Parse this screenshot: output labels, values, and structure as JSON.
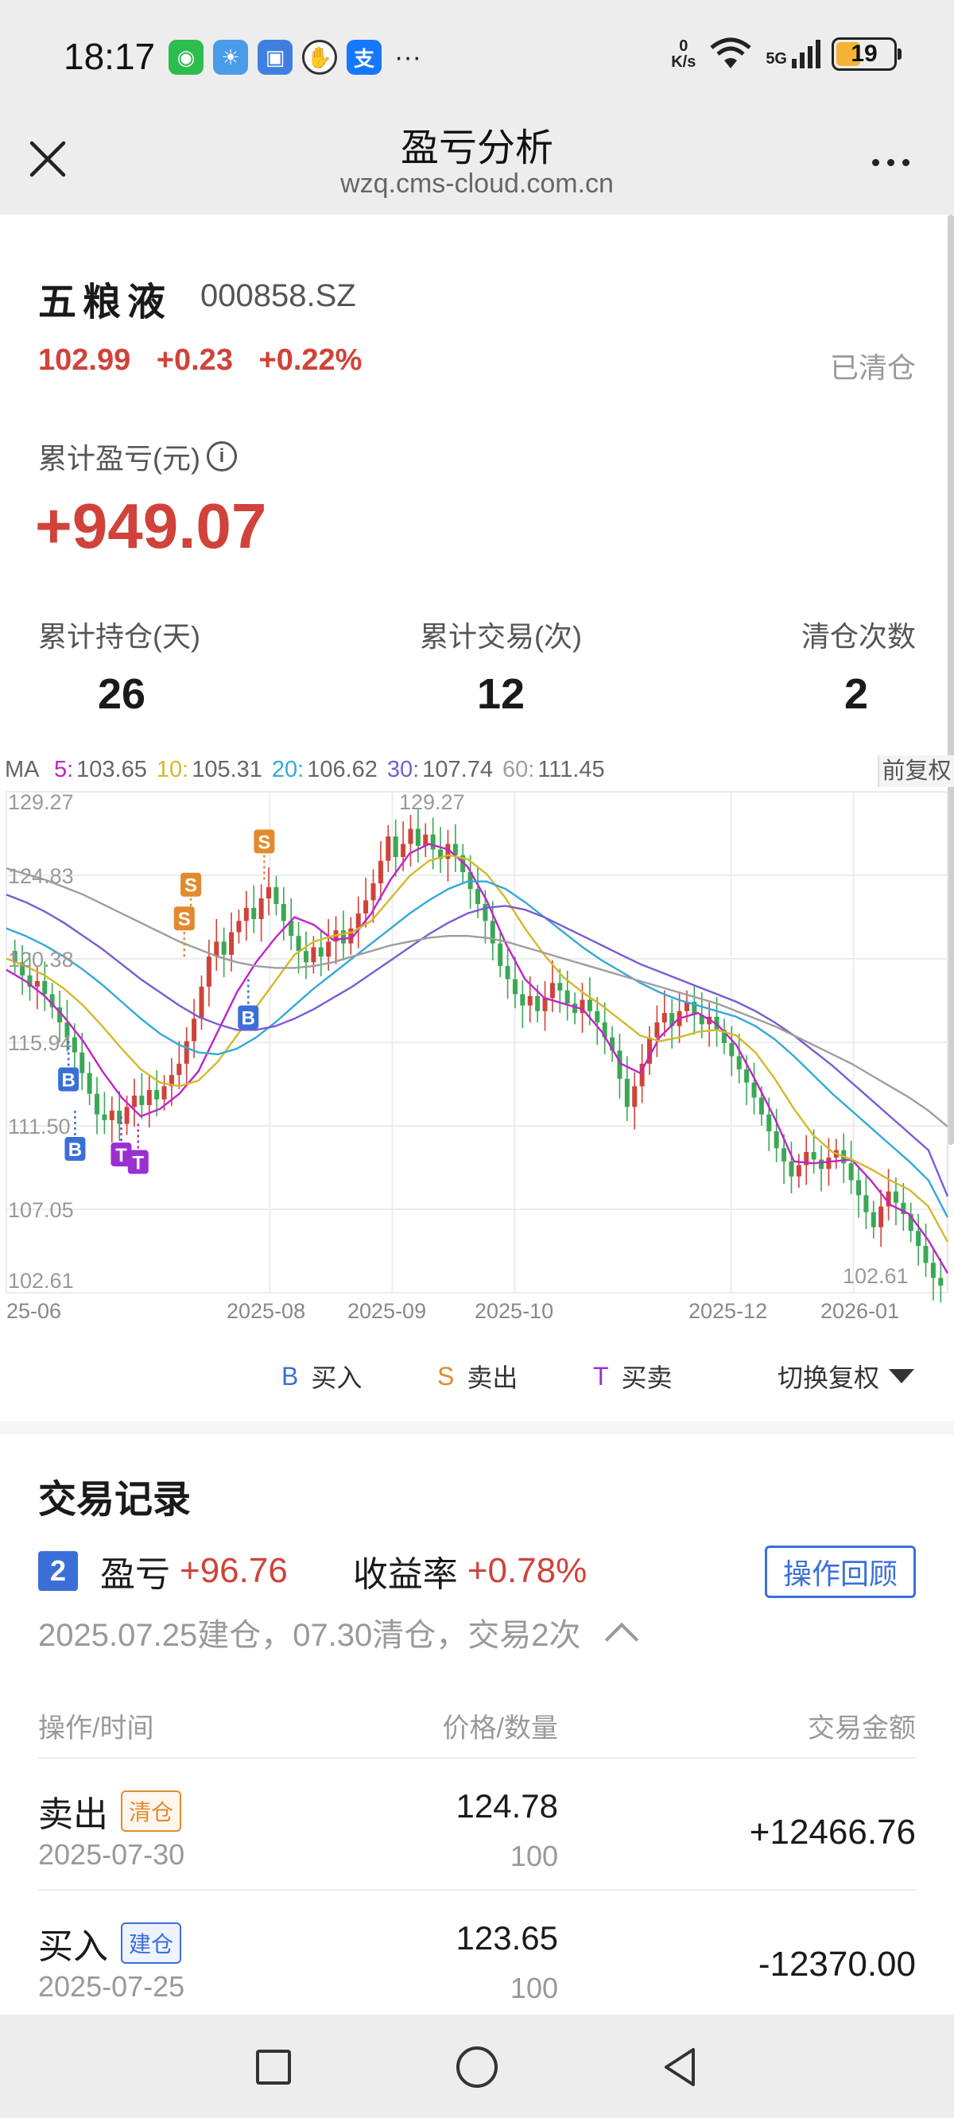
{
  "status": {
    "time": "18:17",
    "net_speed_top": "0",
    "net_speed_bottom": "K/s",
    "signal": "5G",
    "battery": "19"
  },
  "header": {
    "title": "盈亏分析",
    "subtitle": "wzq.cms-cloud.com.cn"
  },
  "stock": {
    "name": "五粮液",
    "code": "000858.SZ",
    "price": "102.99",
    "change": "+0.23",
    "change_pct": "+0.22%",
    "status": "已清仓"
  },
  "summary": {
    "cum_label": "累计盈亏(元)",
    "cum_value": "+949.07",
    "stats": [
      {
        "label": "累计持仓(天)",
        "value": "26"
      },
      {
        "label": "累计交易(次)",
        "value": "12"
      },
      {
        "label": "清仓次数",
        "value": "2"
      }
    ]
  },
  "ma": {
    "prefix": "MA",
    "items": [
      {
        "key": "5:",
        "value": "103.65",
        "color": "#c224c9"
      },
      {
        "key": "10:",
        "value": "105.31",
        "color": "#d4b92a"
      },
      {
        "key": "20:",
        "value": "106.62",
        "color": "#35a9d9"
      },
      {
        "key": "30:",
        "value": "107.74",
        "color": "#7b5bd4"
      },
      {
        "key": "60:",
        "value": "111.45",
        "color": "#9e9e9e"
      }
    ],
    "adjust": "前复权"
  },
  "chart_data": {
    "type": "candlestick",
    "y_ticks": [
      "129.27",
      "124.83",
      "120.38",
      "115.94",
      "111.50",
      "107.05",
      "102.61"
    ],
    "y_range": [
      102.61,
      129.27
    ],
    "x_ticks": [
      "25-06",
      "2025-08",
      "2025-09",
      "2025-10",
      "2025-12",
      "2026-01"
    ],
    "max_label": "129.27",
    "min_label": "102.61",
    "closes": [
      120.2,
      119.5,
      118.9,
      119.2,
      118.5,
      117.8,
      117.0,
      116.2,
      115.4,
      114.3,
      113.2,
      112.1,
      111.8,
      112.3,
      111.6,
      112.5,
      113.1,
      112.6,
      113.4,
      112.9,
      113.6,
      114.2,
      114.8,
      116.0,
      117.2,
      118.9,
      120.5,
      121.3,
      120.6,
      121.8,
      122.4,
      123.1,
      122.5,
      123.6,
      124.2,
      123.3,
      122.4,
      121.6,
      120.8,
      120.2,
      121.0,
      120.5,
      121.3,
      121.9,
      121.2,
      122.0,
      122.8,
      123.5,
      124.4,
      125.6,
      126.9,
      125.8,
      126.5,
      127.3,
      126.4,
      127.0,
      126.2,
      125.7,
      126.5,
      125.9,
      125.0,
      124.1,
      123.3,
      122.4,
      121.2,
      120.0,
      119.3,
      118.5,
      117.9,
      118.4,
      117.6,
      118.3,
      119.1,
      118.7,
      118.0,
      117.5,
      118.2,
      117.6,
      117.0,
      116.2,
      115.5,
      114.0,
      112.5,
      113.6,
      114.8,
      116.2,
      117.0,
      117.5,
      116.8,
      117.6,
      118.1,
      117.4,
      116.9,
      117.3,
      116.6,
      115.9,
      115.2,
      114.5,
      113.8,
      113.0,
      112.1,
      111.2,
      110.3,
      109.6,
      108.8,
      109.4,
      110.1,
      109.7,
      109.2,
      109.8,
      110.2,
      109.5,
      108.6,
      107.8,
      106.9,
      106.1,
      107.2,
      108.0,
      107.4,
      106.8,
      105.9,
      105.1,
      104.2,
      103.4,
      102.99
    ],
    "ma_series": [
      {
        "name": "MA5",
        "values": [
          119.8,
          119.2,
          118.4,
          117.3,
          116.0,
          114.4,
          113.0,
          112.0,
          112.4,
          113.2,
          114.4,
          116.5,
          118.6,
          120.2,
          121.5,
          122.6,
          122.2,
          121.4,
          121.5,
          122.8,
          124.6,
          126.0,
          126.5,
          126.2,
          125.3,
          123.5,
          121.2,
          119.3,
          118.3,
          118.0,
          117.7,
          116.5,
          114.8,
          114.3,
          116.2,
          117.2,
          117.5,
          116.9,
          115.8,
          113.9,
          111.9,
          109.6,
          109.5,
          109.6,
          109.7,
          108.6,
          107.3,
          106.8,
          105.4,
          103.65
        ]
      },
      {
        "name": "MA10",
        "values": [
          120.4,
          120.0,
          119.5,
          118.8,
          117.9,
          116.8,
          115.6,
          114.5,
          113.8,
          113.6,
          113.9,
          114.9,
          116.3,
          117.8,
          119.2,
          120.6,
          121.3,
          121.6,
          121.8,
          122.4,
          123.6,
          124.8,
          125.6,
          125.9,
          125.7,
          124.9,
          123.6,
          122.0,
          120.6,
          119.4,
          118.6,
          117.9,
          117.1,
          116.3,
          116.0,
          116.2,
          116.5,
          116.6,
          116.3,
          115.4,
          114.0,
          112.4,
          111.0,
          110.1,
          109.7,
          109.2,
          108.6,
          108.1,
          107.2,
          105.31
        ]
      },
      {
        "name": "MA20",
        "values": [
          122.0,
          121.6,
          121.1,
          120.5,
          119.8,
          119.0,
          118.1,
          117.2,
          116.4,
          115.8,
          115.4,
          115.3,
          115.6,
          116.2,
          117.0,
          117.9,
          118.8,
          119.6,
          120.4,
          121.2,
          122.0,
          122.8,
          123.5,
          124.1,
          124.5,
          124.5,
          124.1,
          123.4,
          122.6,
          121.8,
          121.0,
          120.3,
          119.7,
          119.1,
          118.6,
          118.2,
          117.9,
          117.6,
          117.3,
          116.8,
          116.1,
          115.2,
          114.2,
          113.2,
          112.3,
          111.4,
          110.5,
          109.6,
          108.6,
          106.62
        ]
      },
      {
        "name": "MA30",
        "values": [
          123.8,
          123.4,
          122.9,
          122.3,
          121.6,
          120.9,
          120.1,
          119.3,
          118.6,
          117.9,
          117.3,
          116.9,
          116.6,
          116.6,
          116.8,
          117.2,
          117.7,
          118.3,
          118.9,
          119.6,
          120.3,
          121.0,
          121.7,
          122.3,
          122.8,
          123.1,
          123.2,
          123.0,
          122.6,
          122.1,
          121.6,
          121.1,
          120.6,
          120.1,
          119.7,
          119.3,
          118.9,
          118.5,
          118.1,
          117.6,
          117.0,
          116.3,
          115.5,
          114.7,
          113.8,
          112.9,
          112.0,
          111.1,
          110.2,
          107.74
        ]
      },
      {
        "name": "MA60",
        "values": [
          125.2,
          124.9,
          124.6,
          124.2,
          123.8,
          123.3,
          122.8,
          122.3,
          121.8,
          121.3,
          120.9,
          120.5,
          120.2,
          120.0,
          119.9,
          119.9,
          120.0,
          120.2,
          120.5,
          120.8,
          121.1,
          121.3,
          121.5,
          121.6,
          121.6,
          121.5,
          121.3,
          121.0,
          120.7,
          120.4,
          120.1,
          119.8,
          119.5,
          119.2,
          118.9,
          118.6,
          118.3,
          118.0,
          117.6,
          117.2,
          116.8,
          116.3,
          115.8,
          115.3,
          114.8,
          114.2,
          113.6,
          113.0,
          112.3,
          111.45
        ]
      }
    ],
    "markers": [
      {
        "type": "B",
        "x": 0.066,
        "y": 116.0
      },
      {
        "type": "B",
        "x": 0.073,
        "y": 112.3
      },
      {
        "type": "T",
        "x": 0.122,
        "y": 112.0
      },
      {
        "type": "T",
        "x": 0.14,
        "y": 111.6
      },
      {
        "type": "S",
        "x": 0.189,
        "y": 120.5
      },
      {
        "type": "S",
        "x": 0.196,
        "y": 122.3
      },
      {
        "type": "S",
        "x": 0.274,
        "y": 124.6
      },
      {
        "type": "B",
        "x": 0.257,
        "y": 119.3
      }
    ]
  },
  "legend": {
    "buy_key": "B",
    "buy": "买入",
    "sell_key": "S",
    "sell": "卖出",
    "both_key": "T",
    "both": "买卖",
    "switch": "切换复权"
  },
  "records": {
    "title": "交易记录",
    "index": "2",
    "pnl_label": "盈亏",
    "pnl_value": "+96.76",
    "ret_label": "收益率",
    "ret_value": "+0.78%",
    "review": "操作回顾",
    "desc": "2025.07.25建仓，07.30清仓，交易2次",
    "columns": [
      "操作/时间",
      "价格/数量",
      "交易金额"
    ],
    "rows": [
      {
        "op": "卖出",
        "tag": "清仓",
        "date": "2025-07-30",
        "price": "124.78",
        "qty": "100",
        "amount": "+12466.76"
      },
      {
        "op": "买入",
        "tag": "建仓",
        "date": "2025-07-25",
        "price": "123.65",
        "qty": "100",
        "amount": "-12370.00"
      }
    ]
  }
}
